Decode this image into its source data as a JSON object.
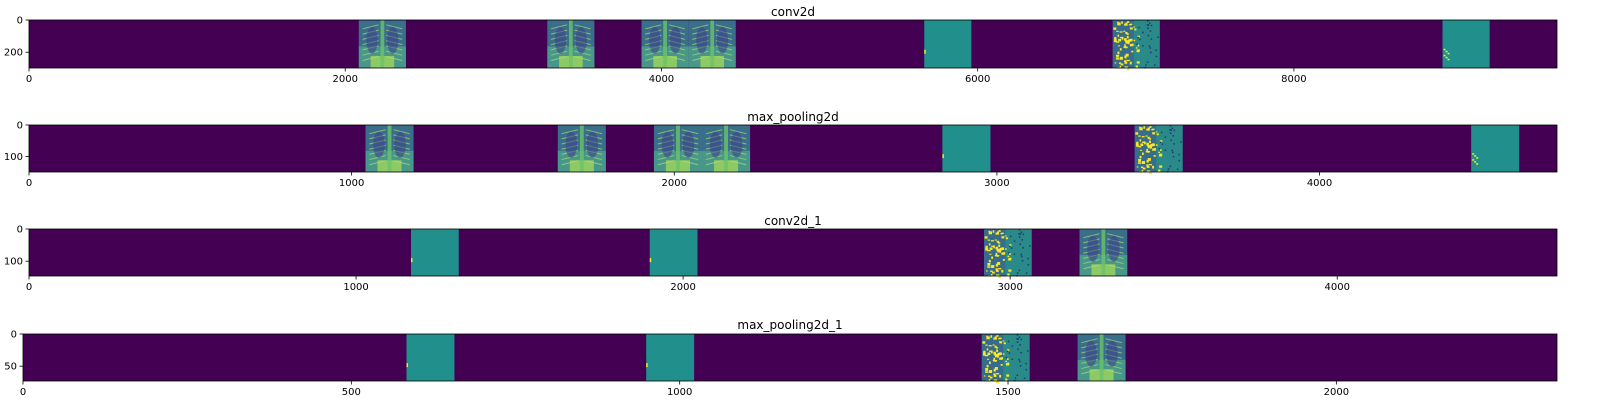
{
  "chart_data": [
    {
      "type": "heatmap",
      "title": "conv2d",
      "xlim": [
        0,
        9664
      ],
      "ylim": [
        298,
        0
      ],
      "xticks": [
        0,
        2000,
        4000,
        6000,
        8000
      ],
      "yticks": [
        0,
        200
      ],
      "grid": false,
      "colormap": "viridis",
      "feature_maps": [
        {
          "index": 0,
          "x": [
            0,
            298
          ],
          "content": "blank"
        },
        {
          "index": 1,
          "x": [
            298,
            596
          ],
          "content": "blank"
        },
        {
          "index": 2,
          "x": [
            596,
            894
          ],
          "content": "blank"
        },
        {
          "index": 3,
          "x": [
            894,
            1192
          ],
          "content": "blank"
        },
        {
          "index": 4,
          "x": [
            1192,
            1490
          ],
          "content": "blank"
        },
        {
          "index": 5,
          "x": [
            1490,
            1788
          ],
          "content": "blank"
        },
        {
          "index": 6,
          "x": [
            1788,
            2086
          ],
          "content": "blank"
        },
        {
          "index": 7,
          "x": [
            2086,
            2384
          ],
          "content": "x-ray"
        },
        {
          "index": 11,
          "x": [
            3278,
            3576
          ],
          "content": "x-ray"
        },
        {
          "index": 13,
          "x": [
            3874,
            4172
          ],
          "content": "x-ray"
        },
        {
          "index": 14,
          "x": [
            4172,
            4470
          ],
          "content": "x-ray"
        },
        {
          "index": 19,
          "x": [
            5662,
            5960
          ],
          "content": "flat"
        },
        {
          "index": 23,
          "x": [
            6854,
            7152
          ],
          "content": "speckled"
        },
        {
          "index": 30,
          "x": [
            8940,
            9238
          ],
          "content": "flat-speckled"
        }
      ]
    },
    {
      "type": "heatmap",
      "title": "max_pooling2d",
      "xlim": [
        0,
        4736
      ],
      "ylim": [
        149,
        0
      ],
      "xticks": [
        0,
        1000,
        2000,
        3000,
        4000
      ],
      "yticks": [
        0,
        100
      ],
      "grid": false,
      "colormap": "viridis",
      "feature_maps": [
        {
          "index": 7,
          "x": [
            1043,
            1192
          ],
          "content": "x-ray"
        },
        {
          "index": 11,
          "x": [
            1639,
            1788
          ],
          "content": "x-ray"
        },
        {
          "index": 13,
          "x": [
            1937,
            2086
          ],
          "content": "x-ray"
        },
        {
          "index": 14,
          "x": [
            2086,
            2235
          ],
          "content": "x-ray"
        },
        {
          "index": 19,
          "x": [
            2831,
            2980
          ],
          "content": "flat"
        },
        {
          "index": 23,
          "x": [
            3427,
            3576
          ],
          "content": "speckled"
        },
        {
          "index": 30,
          "x": [
            4470,
            4619
          ],
          "content": "flat-speckled"
        }
      ]
    },
    {
      "type": "heatmap",
      "title": "conv2d_1",
      "xlim": [
        0,
        4672
      ],
      "ylim": [
        146,
        0
      ],
      "xticks": [
        0,
        1000,
        2000,
        3000,
        4000
      ],
      "yticks": [
        0,
        100
      ],
      "grid": false,
      "colormap": "viridis",
      "feature_maps": [
        {
          "index": 8,
          "x": [
            1168,
            1314
          ],
          "content": "flat"
        },
        {
          "index": 13,
          "x": [
            1898,
            2044
          ],
          "content": "flat"
        },
        {
          "index": 20,
          "x": [
            2920,
            3066
          ],
          "content": "speckled"
        },
        {
          "index": 22,
          "x": [
            3212,
            3358
          ],
          "content": "x-ray"
        }
      ]
    },
    {
      "type": "heatmap",
      "title": "max_pooling2d_1",
      "xlim": [
        0,
        2336
      ],
      "ylim": [
        73,
        0
      ],
      "xticks": [
        0,
        500,
        1000,
        1500,
        2000
      ],
      "yticks": [
        0,
        50
      ],
      "grid": false,
      "colormap": "viridis",
      "feature_maps": [
        {
          "index": 8,
          "x": [
            584,
            657
          ],
          "content": "flat"
        },
        {
          "index": 13,
          "x": [
            949,
            1022
          ],
          "content": "flat"
        },
        {
          "index": 20,
          "x": [
            1460,
            1533
          ],
          "content": "speckled"
        },
        {
          "index": 22,
          "x": [
            1606,
            1679
          ],
          "content": "x-ray"
        }
      ]
    }
  ],
  "colors": {
    "background": "#440154",
    "flat": "#21908d",
    "xray_dark": "#3b528b",
    "xray_mid": "#2c8c7e",
    "xray_light": "#5ec962",
    "highlight": "#fde725"
  }
}
